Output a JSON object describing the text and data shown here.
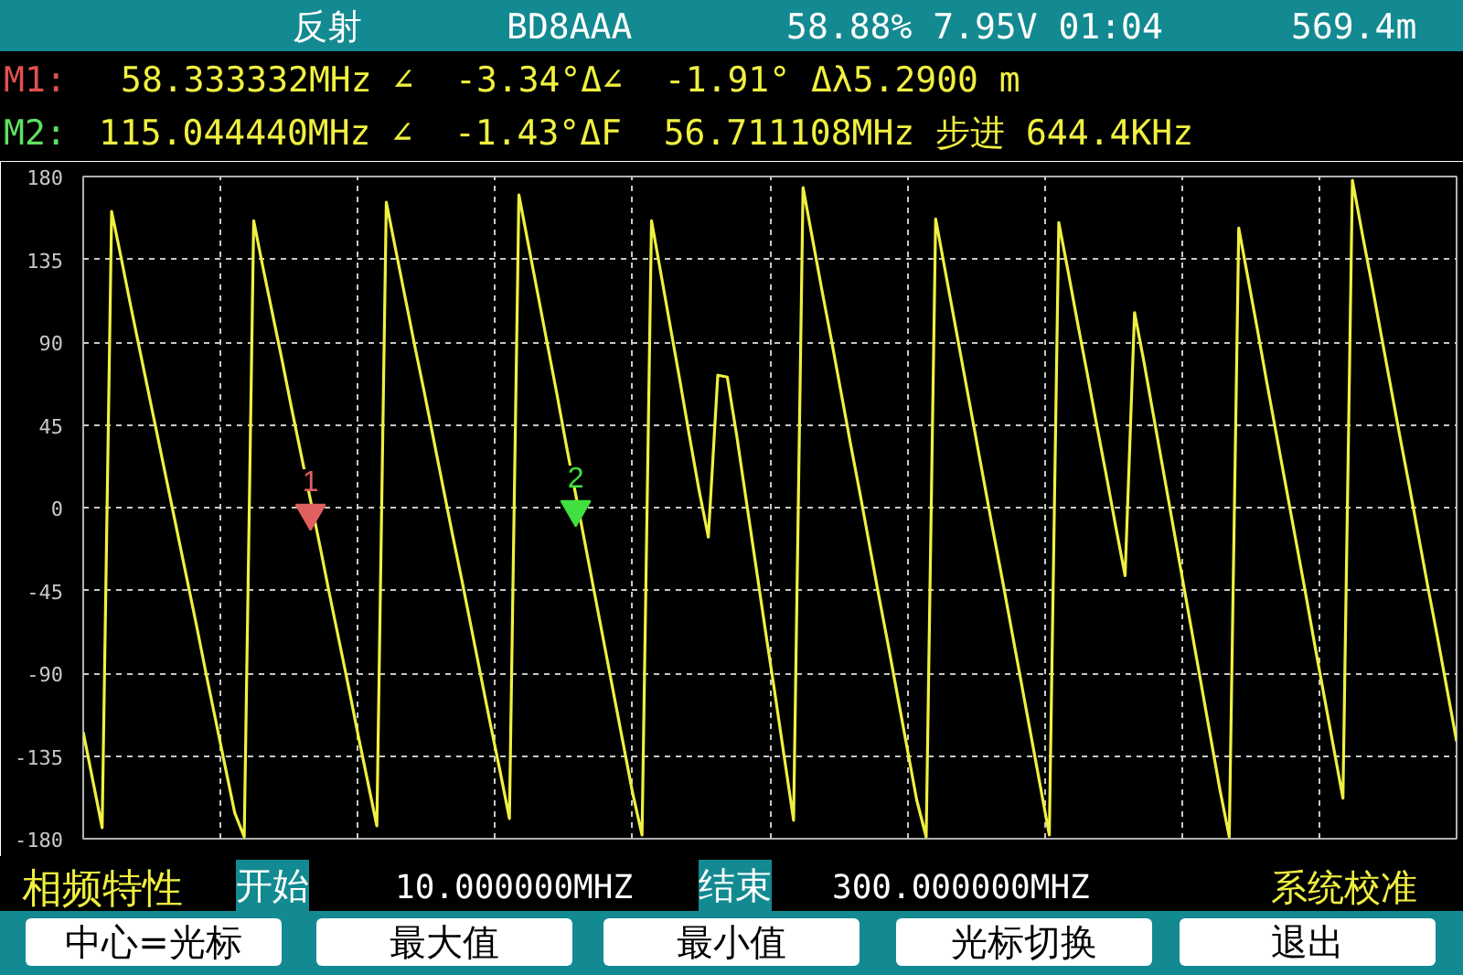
{
  "chart_data": {
    "type": "line",
    "ylim": [
      -180,
      180
    ],
    "categories": [
      null,
      null,
      null,
      null,
      null,
      null,
      null,
      null,
      null,
      null,
      null,
      null,
      null,
      null,
      null,
      null,
      null,
      null,
      null,
      null,
      null,
      null,
      null,
      null,
      null,
      null,
      null,
      null,
      null,
      null,
      null,
      null,
      null,
      null,
      null,
      null,
      null,
      null,
      null,
      null,
      null,
      null,
      null,
      null,
      null,
      null,
      null,
      null,
      null,
      null,
      null,
      null,
      null,
      null,
      null,
      null,
      null,
      null,
      null,
      null,
      null,
      null,
      null,
      null,
      null,
      null,
      null,
      null,
      null,
      null,
      null,
      null,
      null,
      null,
      null,
      null,
      null,
      null,
      null,
      null,
      null,
      null,
      null,
      null,
      null,
      null,
      null,
      null,
      null,
      null,
      null,
      null,
      null,
      null,
      null,
      null,
      null,
      null,
      null,
      null,
      null,
      null,
      null,
      null,
      null,
      null,
      null,
      null,
      null,
      null,
      null,
      null,
      null,
      null,
      null,
      null,
      null,
      null,
      null,
      null,
      null,
      null,
      null,
      null,
      null,
      null,
      null,
      null,
      null,
      null,
      null,
      null,
      null,
      null,
      null,
      null,
      null,
      null,
      null,
      null,
      null,
      null,
      null,
      null,
      null,
      null
    ],
    "yticks": [
      -180,
      -135,
      -90,
      -45,
      0,
      45,
      90,
      135,
      180
    ],
    "tick_labels": "y",
    "grid": true,
    "series": [
      {
        "color": "#f0f040",
        "values": [
          -122,
          -148,
          -174,
          161,
          136,
          110,
          85,
          60,
          35,
          10,
          -15,
          -40,
          -65,
          -91,
          -116,
          -141,
          -166,
          -179,
          156,
          130,
          105,
          80,
          54,
          29,
          4,
          -21,
          -47,
          -72,
          -97,
          -123,
          -148,
          -173,
          166,
          140,
          114,
          88,
          63,
          37,
          11,
          -15,
          -40,
          -66,
          -92,
          -118,
          -143,
          -169,
          170,
          143,
          116,
          89,
          62,
          34,
          7,
          -20,
          -47,
          -74,
          -101,
          -128,
          -155,
          -178,
          156,
          127,
          98,
          69,
          39,
          10,
          -16,
          72,
          71,
          39,
          4,
          -31,
          -66,
          -100,
          -135,
          -170,
          174,
          146,
          118,
          91,
          63,
          35,
          8,
          -20,
          -48,
          -75,
          -103,
          -131,
          -159,
          -179,
          157,
          129,
          101,
          73,
          45,
          17,
          -11,
          -38,
          -66,
          -94,
          -122,
          -150,
          -178,
          155,
          128,
          100,
          73,
          45,
          18,
          -10,
          -37,
          106,
          79,
          50,
          21,
          -8,
          -37,
          -66,
          -95,
          -124,
          -153,
          -179,
          152,
          124,
          96,
          67,
          39,
          11,
          -17,
          -45,
          -74,
          -102,
          -130,
          -158,
          178,
          150,
          123,
          95,
          67,
          39,
          12,
          -16,
          -44,
          -71,
          -99,
          -127
        ]
      },
      {
        "type": "scatter",
        "name": "1",
        "color": "#e06060",
        "marker": "triangle",
        "values": [
          null,
          null,
          null,
          null,
          null,
          null,
          null,
          null,
          null,
          null,
          null,
          null,
          null,
          null,
          null,
          null,
          null,
          null,
          null,
          null,
          null,
          null,
          null,
          null,
          -3,
          null,
          null,
          null,
          null,
          null,
          null,
          null,
          null,
          null,
          null,
          null,
          null,
          null,
          null,
          null,
          null,
          null,
          null,
          null,
          null,
          null,
          null,
          null,
          null,
          null,
          null,
          null,
          null,
          null,
          null,
          null,
          null,
          null,
          null,
          null,
          null,
          null,
          null,
          null,
          null,
          null,
          null,
          null,
          null,
          null,
          null,
          null,
          null,
          null,
          null,
          null,
          null,
          null,
          null,
          null,
          null,
          null,
          null,
          null,
          null,
          null,
          null,
          null,
          null,
          null,
          null,
          null,
          null,
          null,
          null,
          null,
          null,
          null,
          null,
          null,
          null,
          null,
          null,
          null,
          null,
          null,
          null,
          null,
          null,
          null,
          null,
          null,
          null,
          null,
          null,
          null,
          null,
          null,
          null,
          null,
          null,
          null,
          null,
          null,
          null,
          null,
          null,
          null,
          null,
          null,
          null,
          null,
          null,
          null,
          null,
          null,
          null,
          null,
          null,
          null,
          null,
          null,
          null,
          null,
          null,
          null
        ]
      },
      {
        "type": "scatter",
        "name": "2",
        "color": "#40e040",
        "marker": "triangle",
        "values": [
          null,
          null,
          null,
          null,
          null,
          null,
          null,
          null,
          null,
          null,
          null,
          null,
          null,
          null,
          null,
          null,
          null,
          null,
          null,
          null,
          null,
          null,
          null,
          null,
          null,
          null,
          null,
          null,
          null,
          null,
          null,
          null,
          null,
          null,
          null,
          null,
          null,
          null,
          null,
          null,
          null,
          null,
          null,
          null,
          null,
          null,
          null,
          null,
          null,
          null,
          null,
          null,
          -1,
          null,
          null,
          null,
          null,
          null,
          null,
          null,
          null,
          null,
          null,
          null,
          null,
          null,
          null,
          null,
          null,
          null,
          null,
          null,
          null,
          null,
          null,
          null,
          null,
          null,
          null,
          null,
          null,
          null,
          null,
          null,
          null,
          null,
          null,
          null,
          null,
          null,
          null,
          null,
          null,
          null,
          null,
          null,
          null,
          null,
          null,
          null,
          null,
          null,
          null,
          null,
          null,
          null,
          null,
          null,
          null,
          null,
          null,
          null,
          null,
          null,
          null,
          null,
          null,
          null,
          null,
          null,
          null,
          null,
          null,
          null,
          null,
          null,
          null,
          null,
          null,
          null,
          null,
          null,
          null,
          null,
          null,
          null,
          null,
          null,
          null,
          null,
          null,
          null,
          null,
          null,
          null,
          null
        ]
      }
    ],
    "annotations": [
      "反射",
      "BD8AAA",
      "58.88% 7.95V 01:04",
      "569.4m",
      "M1:",
      "58.333332MHz ∠  -3.34°Δ∠  -1.91° Δλ5.2900 m",
      "M2:",
      "115.044440MHz ∠  -1.43°ΔF  56.711108MHz 步进 644.4KHz",
      "相频特性",
      "开始",
      "10.000000MHZ",
      "结束",
      "300.000000MHZ",
      "系统校准",
      "中心=光标",
      "最大值",
      "最小值",
      "光标切换",
      "退出"
    ]
  }
}
